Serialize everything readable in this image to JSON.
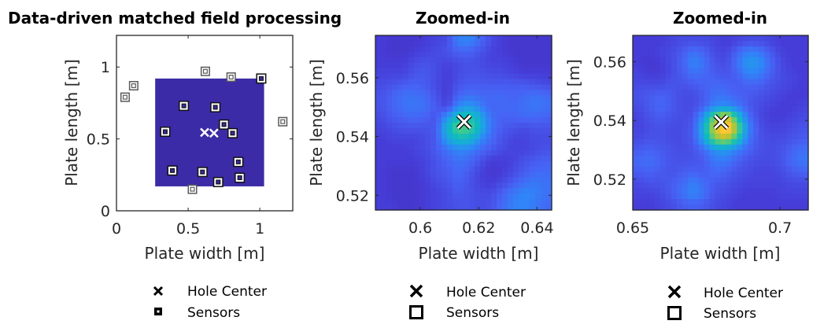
{
  "figure_title": "Data-driven matched field processing",
  "chart_data": [
    {
      "type": "scatter",
      "title": "Data-driven matched field processing",
      "xlabel": "Plate width [m]",
      "ylabel": "Plate length [m]",
      "xlim": [
        0,
        1.23
      ],
      "ylim": [
        0,
        1.22
      ],
      "xticks": [
        0,
        0.5,
        1
      ],
      "xtick_labels": [
        "0",
        "0.5",
        "1"
      ],
      "yticks": [
        0,
        0.5,
        1
      ],
      "ytick_labels": [
        "0",
        "0.5",
        "1"
      ],
      "grid": false,
      "map_region": {
        "x": [
          0.27,
          1.03
        ],
        "y": [
          0.17,
          0.92
        ],
        "color": "#3b2ba6"
      },
      "series": [
        {
          "name": "Hole Center",
          "marker": "x",
          "color": "#ffffff",
          "points": [
            [
              0.615,
              0.545
            ],
            [
              0.68,
              0.54
            ]
          ]
        },
        {
          "name": "Sensors",
          "marker": "square",
          "points": [
            [
              0.12,
              0.87
            ],
            [
              0.06,
              0.79
            ],
            [
              0.62,
              0.97
            ],
            [
              0.8,
              0.93
            ],
            [
              1.01,
              0.92
            ],
            [
              1.16,
              0.62
            ],
            [
              0.47,
              0.73
            ],
            [
              0.69,
              0.72
            ],
            [
              0.75,
              0.6
            ],
            [
              0.34,
              0.55
            ],
            [
              0.81,
              0.54
            ],
            [
              0.85,
              0.34
            ],
            [
              0.39,
              0.28
            ],
            [
              0.6,
              0.27
            ],
            [
              0.86,
              0.23
            ],
            [
              0.71,
              0.2
            ],
            [
              0.53,
              0.15
            ]
          ]
        }
      ],
      "legend": {
        "placement": "bottom",
        "entries": [
          "Hole Center",
          "Sensors"
        ]
      }
    },
    {
      "type": "heatmap",
      "title": "Zoomed-in",
      "xlabel": "Plate width [m]",
      "ylabel": "Plate length [m]",
      "xlim": [
        0.5846,
        0.645
      ],
      "ylim": [
        0.515,
        0.5744
      ],
      "xticks": [
        0.6,
        0.62,
        0.64
      ],
      "xtick_labels": [
        "0.6",
        "0.62",
        "0.64"
      ],
      "yticks": [
        0.52,
        0.54,
        0.56
      ],
      "ytick_labels": [
        "0.52",
        "0.54",
        "0.56"
      ],
      "grid": false,
      "colormap": "parula",
      "clim": [
        0,
        1
      ],
      "hole_center": [
        0.615,
        0.545
      ],
      "z": [
        [
          0.1,
          0.08,
          0.08,
          0.08,
          0.1,
          0.12,
          0.14,
          0.28,
          0.3,
          0.22,
          0.14,
          0.1,
          0.08,
          0.08,
          0.08,
          0.08
        ],
        [
          0.1,
          0.08,
          0.08,
          0.1,
          0.12,
          0.14,
          0.16,
          0.2,
          0.2,
          0.16,
          0.12,
          0.1,
          0.08,
          0.08,
          0.08,
          0.08
        ],
        [
          0.1,
          0.1,
          0.1,
          0.14,
          0.16,
          0.14,
          0.12,
          0.14,
          0.16,
          0.14,
          0.12,
          0.12,
          0.1,
          0.08,
          0.08,
          0.08
        ],
        [
          0.12,
          0.12,
          0.12,
          0.16,
          0.18,
          0.14,
          0.1,
          0.14,
          0.16,
          0.16,
          0.14,
          0.14,
          0.12,
          0.1,
          0.1,
          0.1
        ],
        [
          0.14,
          0.16,
          0.18,
          0.2,
          0.18,
          0.14,
          0.1,
          0.16,
          0.18,
          0.18,
          0.18,
          0.18,
          0.18,
          0.18,
          0.16,
          0.14
        ],
        [
          0.16,
          0.2,
          0.24,
          0.24,
          0.22,
          0.16,
          0.1,
          0.2,
          0.24,
          0.22,
          0.22,
          0.22,
          0.2,
          0.22,
          0.24,
          0.22
        ],
        [
          0.16,
          0.2,
          0.24,
          0.26,
          0.24,
          0.18,
          0.12,
          0.3,
          0.36,
          0.28,
          0.2,
          0.22,
          0.22,
          0.24,
          0.26,
          0.24
        ],
        [
          0.14,
          0.18,
          0.2,
          0.22,
          0.2,
          0.16,
          0.34,
          0.52,
          0.56,
          0.42,
          0.24,
          0.2,
          0.2,
          0.22,
          0.22,
          0.2
        ],
        [
          0.12,
          0.14,
          0.16,
          0.16,
          0.16,
          0.18,
          0.46,
          0.66,
          0.64,
          0.46,
          0.24,
          0.18,
          0.16,
          0.14,
          0.16,
          0.16
        ],
        [
          0.1,
          0.12,
          0.12,
          0.12,
          0.14,
          0.18,
          0.38,
          0.5,
          0.48,
          0.32,
          0.22,
          0.16,
          0.12,
          0.12,
          0.14,
          0.14
        ],
        [
          0.1,
          0.1,
          0.1,
          0.12,
          0.14,
          0.18,
          0.24,
          0.3,
          0.28,
          0.22,
          0.18,
          0.14,
          0.12,
          0.12,
          0.14,
          0.16
        ],
        [
          0.1,
          0.1,
          0.1,
          0.1,
          0.12,
          0.16,
          0.2,
          0.24,
          0.22,
          0.16,
          0.1,
          0.1,
          0.12,
          0.16,
          0.18,
          0.2
        ],
        [
          0.1,
          0.08,
          0.08,
          0.08,
          0.12,
          0.16,
          0.18,
          0.22,
          0.18,
          0.12,
          0.08,
          0.1,
          0.14,
          0.18,
          0.22,
          0.22
        ],
        [
          0.1,
          0.08,
          0.08,
          0.08,
          0.1,
          0.14,
          0.16,
          0.2,
          0.16,
          0.12,
          0.1,
          0.14,
          0.18,
          0.24,
          0.26,
          0.24
        ],
        [
          0.1,
          0.08,
          0.08,
          0.08,
          0.1,
          0.12,
          0.14,
          0.18,
          0.16,
          0.14,
          0.14,
          0.2,
          0.26,
          0.3,
          0.28,
          0.24
        ],
        [
          0.1,
          0.1,
          0.08,
          0.08,
          0.1,
          0.12,
          0.14,
          0.16,
          0.16,
          0.14,
          0.16,
          0.22,
          0.28,
          0.3,
          0.26,
          0.22
        ]
      ],
      "legend": {
        "placement": "bottom",
        "entries": [
          "Hole Center",
          "Sensors"
        ]
      }
    },
    {
      "type": "heatmap",
      "title": "Zoomed-in",
      "xlabel": "Plate width [m]",
      "ylabel": "Plate length [m]",
      "xlim": [
        0.65,
        0.7096
      ],
      "ylim": [
        0.5095,
        0.569
      ],
      "xticks": [
        0.65,
        0.7
      ],
      "xtick_labels": [
        "0.65",
        "0.7"
      ],
      "yticks": [
        0.52,
        0.54,
        0.56
      ],
      "ytick_labels": [
        "0.52",
        "0.54",
        "0.56"
      ],
      "grid": false,
      "colormap": "parula",
      "clim": [
        0,
        1
      ],
      "hole_center": [
        0.68,
        0.5395
      ],
      "z": [
        [
          0.1,
          0.1,
          0.1,
          0.12,
          0.14,
          0.14,
          0.14,
          0.12,
          0.1,
          0.12,
          0.14,
          0.14,
          0.12,
          0.1,
          0.1,
          0.1
        ],
        [
          0.1,
          0.1,
          0.12,
          0.14,
          0.18,
          0.24,
          0.2,
          0.14,
          0.12,
          0.2,
          0.28,
          0.26,
          0.18,
          0.12,
          0.1,
          0.1
        ],
        [
          0.1,
          0.08,
          0.1,
          0.14,
          0.2,
          0.3,
          0.24,
          0.16,
          0.14,
          0.24,
          0.36,
          0.34,
          0.22,
          0.14,
          0.1,
          0.1
        ],
        [
          0.12,
          0.1,
          0.1,
          0.14,
          0.18,
          0.24,
          0.22,
          0.18,
          0.16,
          0.2,
          0.3,
          0.28,
          0.2,
          0.14,
          0.12,
          0.1
        ],
        [
          0.14,
          0.14,
          0.14,
          0.16,
          0.16,
          0.18,
          0.2,
          0.22,
          0.2,
          0.18,
          0.2,
          0.2,
          0.16,
          0.14,
          0.12,
          0.1
        ],
        [
          0.16,
          0.18,
          0.2,
          0.18,
          0.14,
          0.14,
          0.18,
          0.24,
          0.24,
          0.2,
          0.18,
          0.16,
          0.14,
          0.12,
          0.1,
          0.1
        ],
        [
          0.14,
          0.18,
          0.22,
          0.18,
          0.14,
          0.14,
          0.2,
          0.3,
          0.32,
          0.26,
          0.18,
          0.14,
          0.12,
          0.1,
          0.1,
          0.12
        ],
        [
          0.12,
          0.16,
          0.18,
          0.16,
          0.14,
          0.16,
          0.36,
          0.7,
          0.86,
          0.54,
          0.24,
          0.14,
          0.1,
          0.1,
          0.12,
          0.14
        ],
        [
          0.12,
          0.14,
          0.16,
          0.14,
          0.14,
          0.18,
          0.46,
          0.84,
          1.0,
          0.74,
          0.3,
          0.16,
          0.12,
          0.12,
          0.14,
          0.16
        ],
        [
          0.14,
          0.16,
          0.16,
          0.14,
          0.14,
          0.18,
          0.4,
          0.7,
          0.78,
          0.56,
          0.26,
          0.16,
          0.14,
          0.14,
          0.16,
          0.18
        ],
        [
          0.18,
          0.2,
          0.18,
          0.16,
          0.14,
          0.16,
          0.22,
          0.34,
          0.36,
          0.28,
          0.2,
          0.16,
          0.14,
          0.16,
          0.2,
          0.24
        ],
        [
          0.22,
          0.24,
          0.2,
          0.16,
          0.16,
          0.16,
          0.18,
          0.26,
          0.26,
          0.2,
          0.16,
          0.14,
          0.14,
          0.16,
          0.22,
          0.26
        ],
        [
          0.18,
          0.2,
          0.18,
          0.16,
          0.18,
          0.2,
          0.18,
          0.22,
          0.2,
          0.16,
          0.14,
          0.12,
          0.12,
          0.14,
          0.18,
          0.2
        ],
        [
          0.14,
          0.16,
          0.16,
          0.18,
          0.22,
          0.28,
          0.22,
          0.18,
          0.16,
          0.14,
          0.12,
          0.12,
          0.12,
          0.12,
          0.14,
          0.14
        ],
        [
          0.12,
          0.12,
          0.14,
          0.18,
          0.24,
          0.3,
          0.24,
          0.16,
          0.14,
          0.12,
          0.1,
          0.1,
          0.1,
          0.12,
          0.12,
          0.12
        ],
        [
          0.1,
          0.1,
          0.12,
          0.14,
          0.18,
          0.2,
          0.18,
          0.14,
          0.12,
          0.1,
          0.1,
          0.1,
          0.1,
          0.1,
          0.1,
          0.1
        ]
      ],
      "legend": {
        "placement": "bottom",
        "entries": [
          "Hole Center",
          "Sensors"
        ]
      }
    }
  ],
  "panels": [
    {
      "title": "Data-driven matched field processing",
      "xlabel": "Plate width [m]",
      "ylabel": "Plate length [m]",
      "legend": {
        "hole": "Hole Center",
        "sensors": "Sensors"
      }
    },
    {
      "title": "Zoomed-in",
      "xlabel": "Plate width [m]",
      "ylabel": "Plate length [m]",
      "legend": {
        "hole": "Hole Center",
        "sensors": "Sensors"
      }
    },
    {
      "title": "Zoomed-in",
      "xlabel": "Plate width [m]",
      "ylabel": "Plate length [m]",
      "legend": {
        "hole": "Hole Center",
        "sensors": "Sensors"
      }
    }
  ],
  "colors": {
    "axis": "#262626",
    "region_fill": "#3b2ba6",
    "hole_marker": "#ffffff",
    "sensor_outer_inside": "#111111",
    "sensor_outer_outside": "#5a5a5a"
  }
}
